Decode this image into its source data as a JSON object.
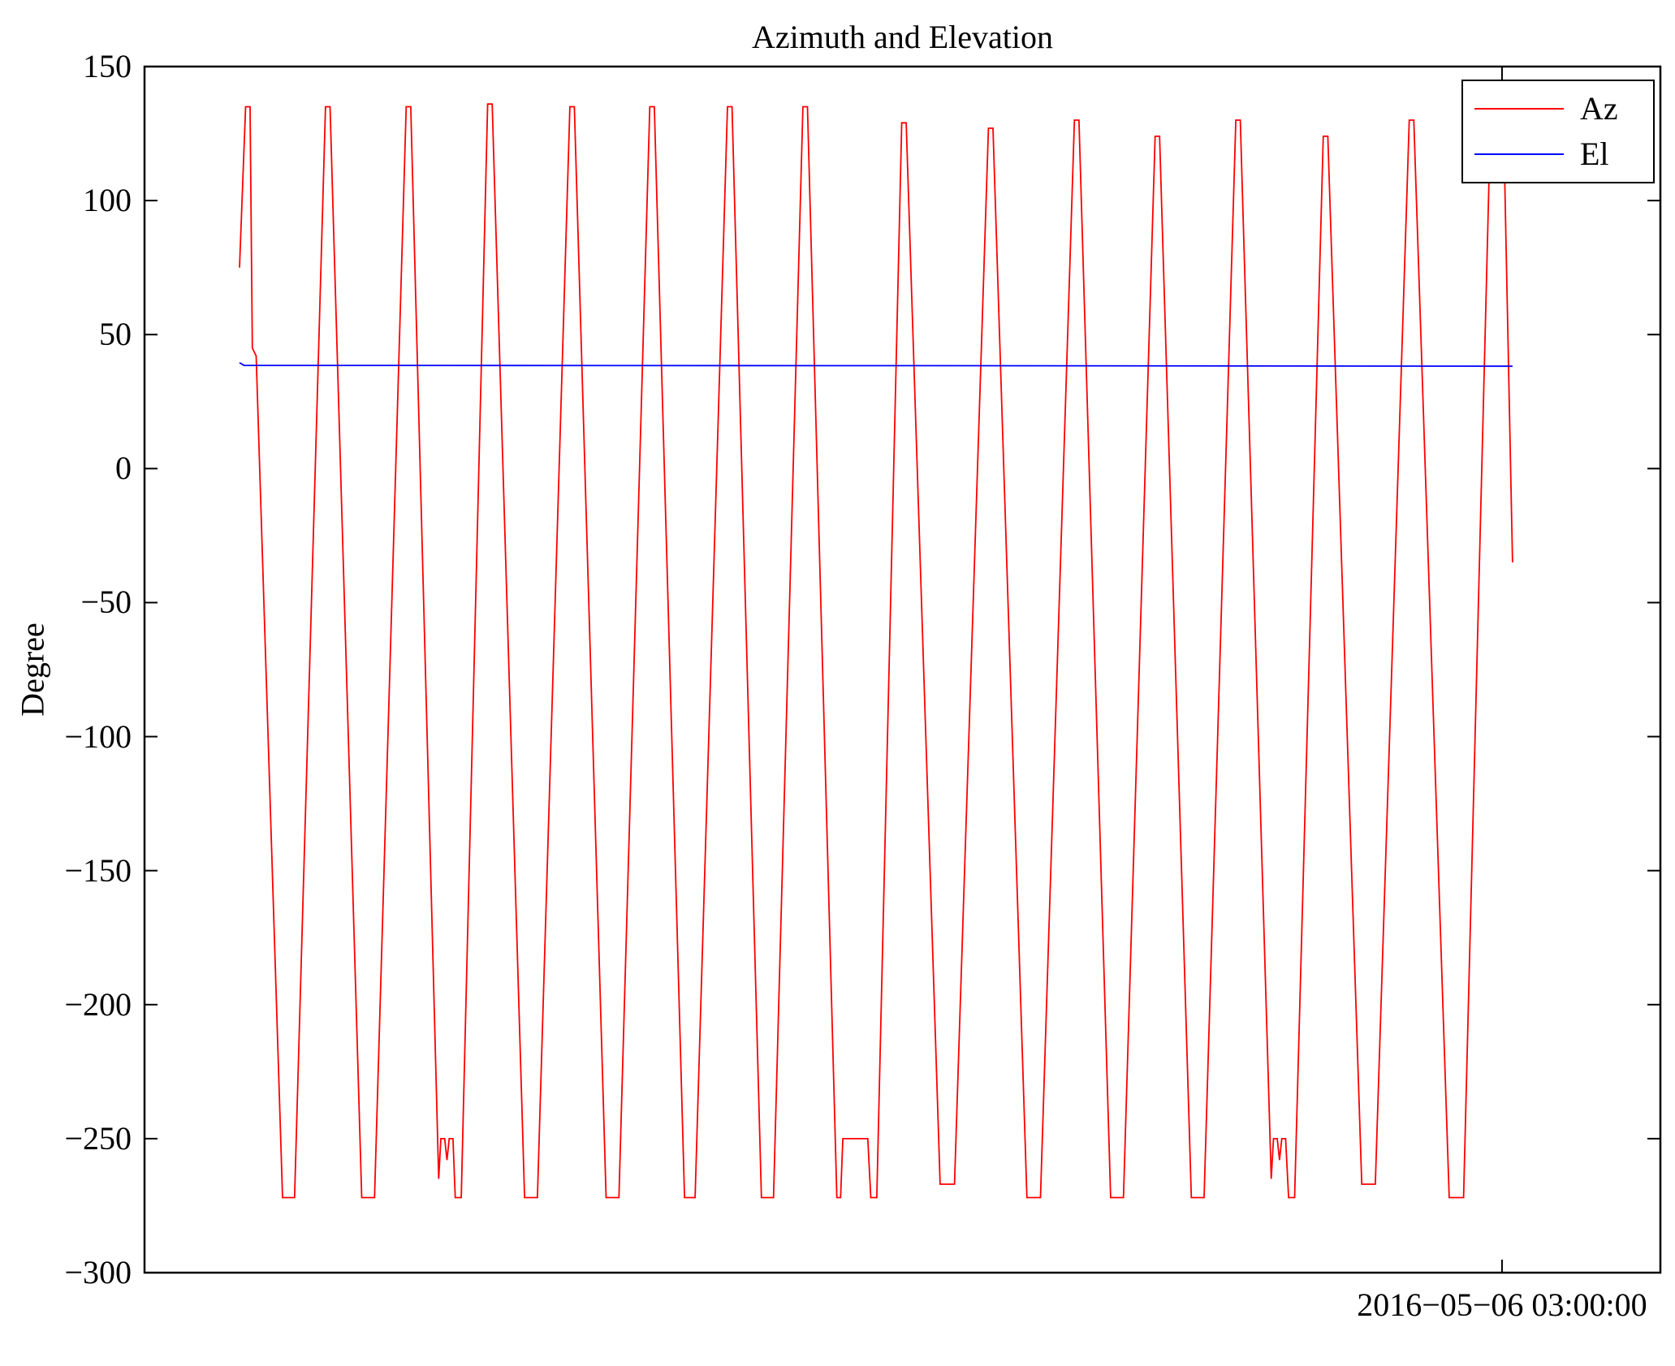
{
  "chart_data": {
    "type": "line",
    "title": "Azimuth and Elevation",
    "xlabel": "",
    "ylabel": "Degree",
    "xlim": [
      0,
      201
    ],
    "ylim": [
      -300,
      150
    ],
    "grid": false,
    "yticks": [
      150,
      100,
      50,
      0,
      -50,
      -100,
      -150,
      -200,
      -250,
      -300
    ],
    "xticks": [
      {
        "value": 180,
        "label": "2016−05−06 03:00:00"
      }
    ],
    "legend": {
      "position": "upper right",
      "entries": [
        {
          "name": "Az",
          "color": "#ff0000"
        },
        {
          "name": "El",
          "color": "#0000ff"
        }
      ]
    },
    "series": [
      {
        "name": "Az",
        "color": "#ff0000",
        "points": [
          [
            12.6,
            75
          ],
          [
            13.4,
            135
          ],
          [
            14.0,
            135
          ],
          [
            14.3,
            45
          ],
          [
            14.8,
            42
          ],
          [
            18.3,
            -272
          ],
          [
            19.9,
            -272
          ],
          [
            24.0,
            135
          ],
          [
            24.6,
            135
          ],
          [
            28.8,
            -272
          ],
          [
            30.5,
            -272
          ],
          [
            34.7,
            135
          ],
          [
            35.3,
            135
          ],
          [
            39.0,
            -265
          ],
          [
            39.3,
            -250
          ],
          [
            39.8,
            -250
          ],
          [
            40.1,
            -258
          ],
          [
            40.4,
            -250
          ],
          [
            40.9,
            -250
          ],
          [
            41.2,
            -272
          ],
          [
            42.0,
            -272
          ],
          [
            45.5,
            136
          ],
          [
            46.1,
            136
          ],
          [
            50.4,
            -272
          ],
          [
            52.1,
            -272
          ],
          [
            56.4,
            135
          ],
          [
            57.0,
            135
          ],
          [
            61.2,
            -272
          ],
          [
            62.9,
            -272
          ],
          [
            67.0,
            135
          ],
          [
            67.6,
            135
          ],
          [
            71.6,
            -272
          ],
          [
            73.0,
            -272
          ],
          [
            77.3,
            135
          ],
          [
            77.9,
            135
          ],
          [
            81.8,
            -272
          ],
          [
            83.4,
            -272
          ],
          [
            87.3,
            135
          ],
          [
            87.9,
            135
          ],
          [
            91.8,
            -272
          ],
          [
            92.3,
            -272
          ],
          [
            92.6,
            -250
          ],
          [
            95.9,
            -250
          ],
          [
            96.3,
            -272
          ],
          [
            97.1,
            -272
          ],
          [
            100.4,
            129
          ],
          [
            101.0,
            129
          ],
          [
            105.5,
            -267
          ],
          [
            107.4,
            -267
          ],
          [
            111.9,
            127
          ],
          [
            112.5,
            127
          ],
          [
            117.0,
            -272
          ],
          [
            118.8,
            -272
          ],
          [
            123.3,
            130
          ],
          [
            123.9,
            130
          ],
          [
            128.1,
            -272
          ],
          [
            129.8,
            -272
          ],
          [
            134.0,
            124
          ],
          [
            134.6,
            124
          ],
          [
            138.8,
            -272
          ],
          [
            140.5,
            -272
          ],
          [
            144.7,
            130
          ],
          [
            145.3,
            130
          ],
          [
            149.4,
            -265
          ],
          [
            149.7,
            -250
          ],
          [
            150.2,
            -250
          ],
          [
            150.5,
            -258
          ],
          [
            150.8,
            -250
          ],
          [
            151.3,
            -250
          ],
          [
            151.7,
            -272
          ],
          [
            152.5,
            -272
          ],
          [
            156.3,
            124
          ],
          [
            156.9,
            124
          ],
          [
            161.4,
            -267
          ],
          [
            163.2,
            -267
          ],
          [
            167.7,
            130
          ],
          [
            168.3,
            130
          ],
          [
            173.0,
            -272
          ],
          [
            174.9,
            -272
          ],
          [
            178.3,
            110
          ],
          [
            178.7,
            110
          ],
          [
            179.5,
            130
          ],
          [
            180.2,
            130
          ],
          [
            181.4,
            -35
          ]
        ]
      },
      {
        "name": "El",
        "color": "#0000ff",
        "points": [
          [
            12.6,
            39.5
          ],
          [
            13.2,
            38.5
          ],
          [
            100.0,
            38.4
          ],
          [
            181.4,
            38.2
          ]
        ]
      }
    ]
  }
}
